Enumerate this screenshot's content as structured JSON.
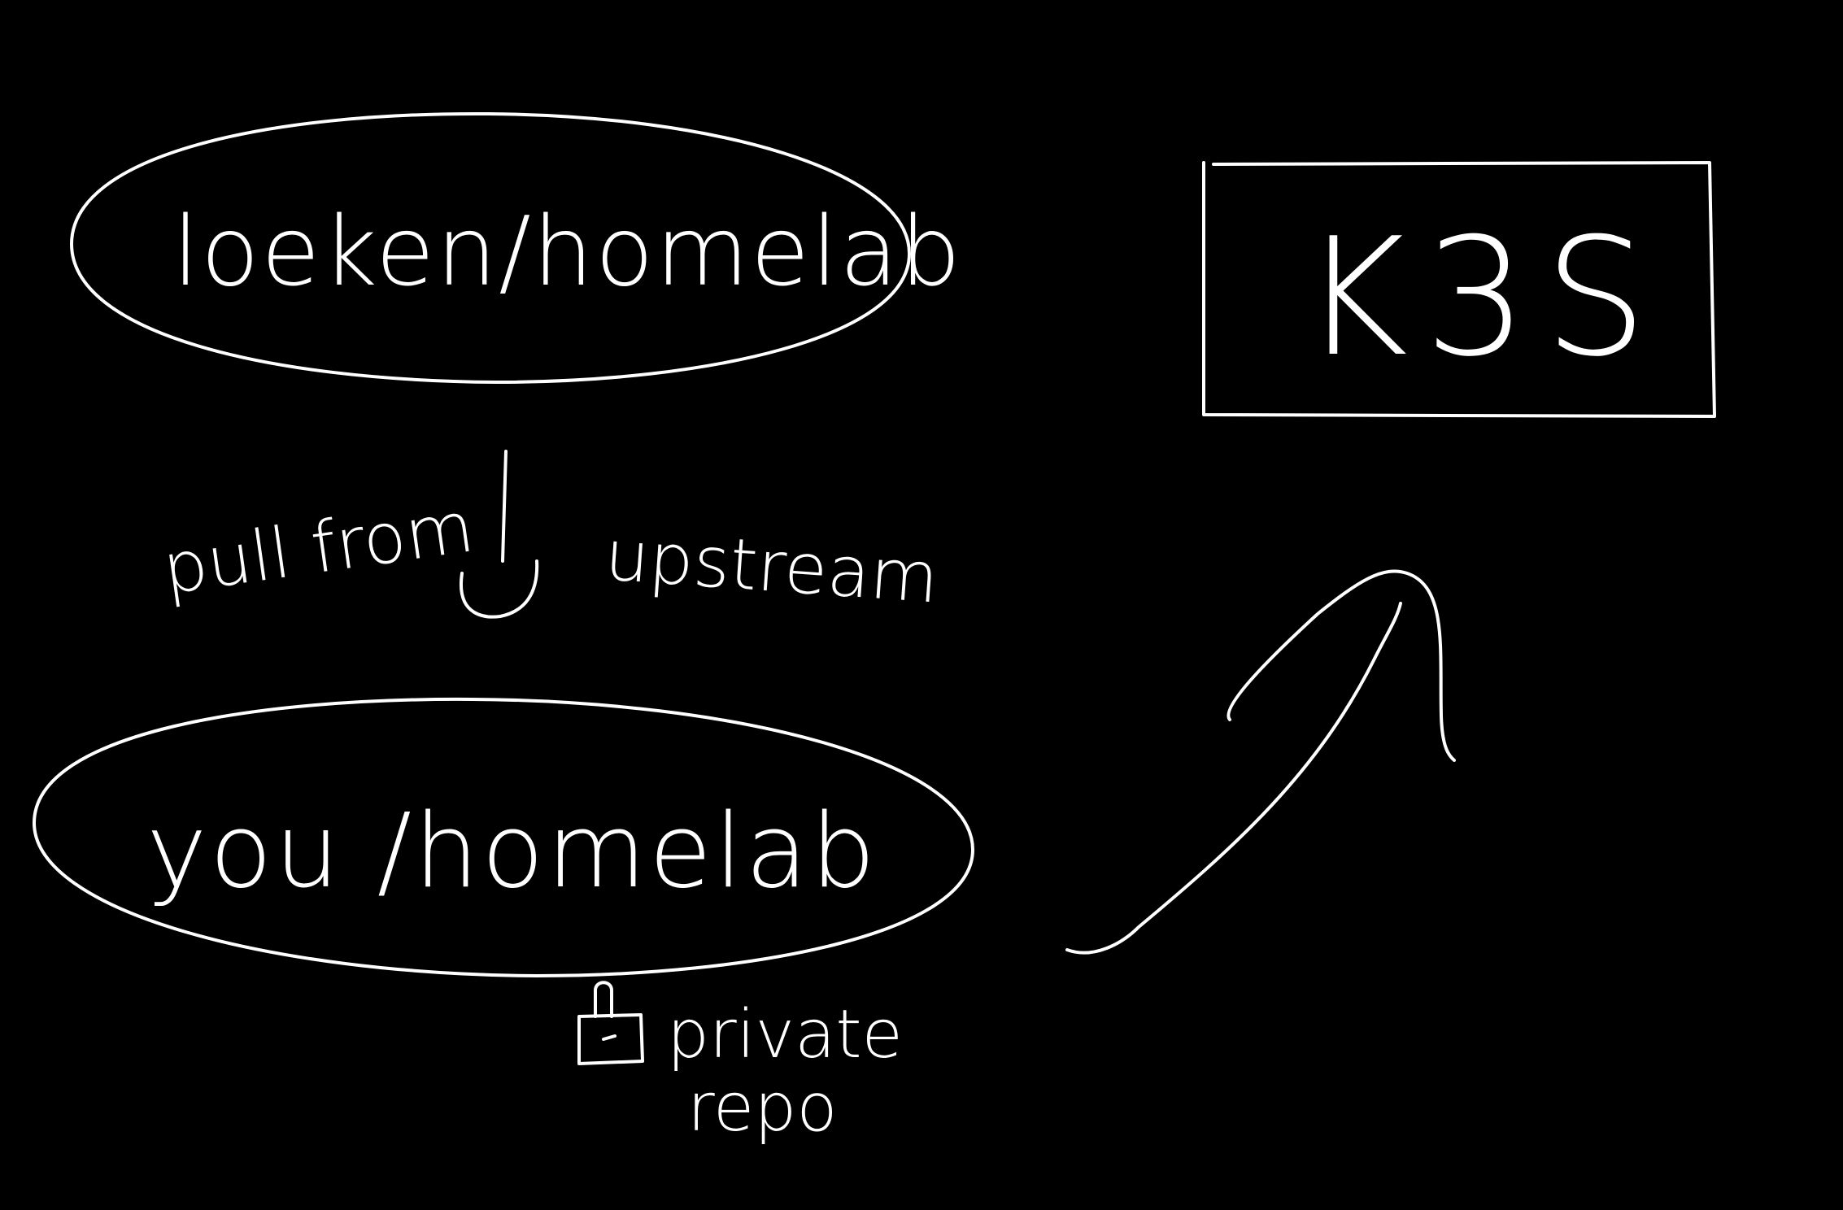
{
  "colors": {
    "background": "#000000",
    "ink": "#ffffff"
  },
  "upstream_repo": {
    "label": "loeken/homelab"
  },
  "relation": {
    "left_label": "pull from",
    "right_label": "upstream"
  },
  "fork_repo": {
    "label": "you /homelab"
  },
  "visibility": {
    "icon": "lock-icon",
    "line1": "private",
    "line2": "repo"
  },
  "target": {
    "label": "K3S"
  }
}
